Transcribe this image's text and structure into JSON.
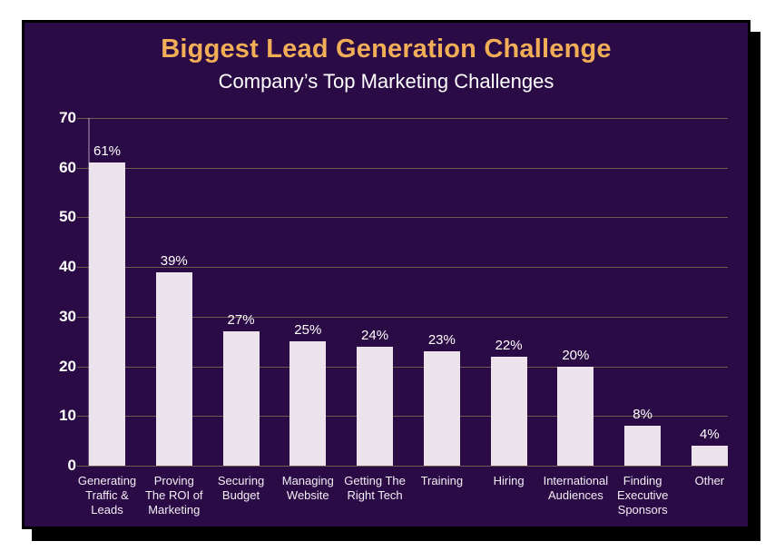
{
  "card": {
    "background_color": "#2b0b45",
    "border_color": "#000000",
    "page_background": "#ffffff"
  },
  "chart_data": {
    "type": "bar",
    "title": "Biggest Lead Generation Challenge",
    "subtitle": "Company’s Top Marketing Challenges",
    "categories": [
      "Generating Traffic & Leads",
      "Proving The ROI of Marketing",
      "Securing Budget",
      "Managing Website",
      "Getting The Right Tech",
      "Training",
      "Hiring",
      "International Audiences",
      "Finding Executive Sponsors",
      "Other"
    ],
    "category_display_lines": [
      [
        "Generating",
        "Traffic &",
        "Leads"
      ],
      [
        "Proving",
        "The ROI of",
        "Marketing"
      ],
      [
        "Securing",
        "Budget"
      ],
      [
        "Managing",
        "Website"
      ],
      [
        "Getting The",
        "Right Tech"
      ],
      [
        "Training"
      ],
      [
        "Hiring"
      ],
      [
        "International",
        "Audiences"
      ],
      [
        "Finding",
        "Executive",
        "Sponsors"
      ],
      [
        "Other"
      ]
    ],
    "values": [
      61,
      39,
      27,
      25,
      24,
      23,
      22,
      20,
      8,
      4
    ],
    "value_labels": [
      "61%",
      "39%",
      "27%",
      "25%",
      "24%",
      "23%",
      "22%",
      "20%",
      "8%",
      "4%"
    ],
    "xlabel": "",
    "ylabel": "",
    "ylim": [
      0,
      70
    ],
    "y_ticks": [
      70,
      60,
      50,
      40,
      30,
      20,
      10,
      0
    ],
    "grid": true,
    "legend": false,
    "colors": {
      "title": "#f2ae57",
      "subtitle": "#ffffff",
      "bar": "#ece3ec",
      "gridline": "#6f5a50",
      "tick_label": "#ffffff",
      "value_label": "#ffffff",
      "category_label": "#f2eef5"
    }
  }
}
